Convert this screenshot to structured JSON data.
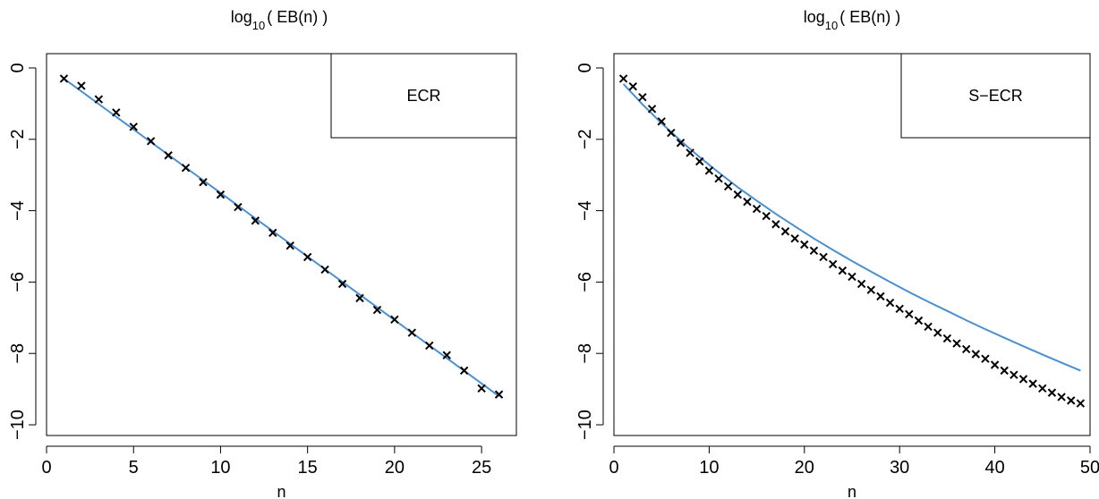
{
  "chart_data": [
    {
      "type": "scatter",
      "title": "log10( EB(n) )",
      "title_parts": {
        "base": "log",
        "sub": "10",
        "rest": "( EB(n) )"
      },
      "xlabel": "n",
      "ylabel": "",
      "xlim": [
        0,
        27
      ],
      "ylim": [
        -10.3,
        0.4
      ],
      "xticks": [
        0,
        5,
        10,
        15,
        20,
        25
      ],
      "yticks": [
        0,
        -2,
        -4,
        -6,
        -8,
        -10
      ],
      "grid": false,
      "legend": {
        "text": "ECR",
        "placement": "top-right"
      },
      "fit_color": "#4a90d0",
      "series": [
        {
          "marker": "x",
          "x": [
            1,
            2,
            3,
            4,
            5,
            6,
            7,
            8,
            9,
            10,
            11,
            12,
            13,
            14,
            15,
            16,
            17,
            18,
            19,
            20,
            21,
            22,
            23,
            24,
            25,
            26
          ],
          "y": [
            -0.3,
            -0.5,
            -0.88,
            -1.25,
            -1.65,
            -2.05,
            -2.45,
            -2.8,
            -3.2,
            -3.55,
            -3.9,
            -4.28,
            -4.62,
            -4.98,
            -5.3,
            -5.65,
            -6.05,
            -6.45,
            -6.78,
            -7.05,
            -7.42,
            -7.78,
            -8.05,
            -8.48,
            -8.98,
            -9.15
          ]
        }
      ],
      "fit": {
        "x": [
          1,
          26
        ],
        "y": [
          -0.3,
          -9.2
        ]
      }
    },
    {
      "type": "scatter",
      "title": "log10( EB(n) )",
      "title_parts": {
        "base": "log",
        "sub": "10",
        "rest": "( EB(n) )"
      },
      "xlabel": "n",
      "ylabel": "",
      "xlim": [
        0,
        50
      ],
      "ylim": [
        -10.3,
        0.4
      ],
      "xticks": [
        0,
        10,
        20,
        30,
        40,
        50
      ],
      "yticks": [
        0,
        -2,
        -4,
        -6,
        -8,
        -10
      ],
      "grid": false,
      "legend": {
        "text": "S−ECR",
        "placement": "top-right"
      },
      "fit_color": "#4a90d0",
      "series": [
        {
          "marker": "x",
          "x": [
            1,
            2,
            3,
            4,
            5,
            6,
            7,
            8,
            9,
            10,
            11,
            12,
            13,
            14,
            15,
            16,
            17,
            18,
            19,
            20,
            21,
            22,
            23,
            24,
            25,
            26,
            27,
            28,
            29,
            30,
            31,
            32,
            33,
            34,
            35,
            36,
            37,
            38,
            39,
            40,
            41,
            42,
            43,
            44,
            45,
            46,
            47,
            48,
            49
          ],
          "y": [
            -0.3,
            -0.52,
            -0.82,
            -1.15,
            -1.5,
            -1.82,
            -2.1,
            -2.38,
            -2.62,
            -2.88,
            -3.1,
            -3.32,
            -3.55,
            -3.75,
            -3.95,
            -4.15,
            -4.38,
            -4.58,
            -4.78,
            -4.95,
            -5.12,
            -5.3,
            -5.5,
            -5.68,
            -5.85,
            -6.05,
            -6.22,
            -6.4,
            -6.58,
            -6.75,
            -6.9,
            -7.08,
            -7.25,
            -7.42,
            -7.58,
            -7.72,
            -7.88,
            -8.02,
            -8.15,
            -8.32,
            -8.48,
            -8.6,
            -8.72,
            -8.85,
            -8.98,
            -9.1,
            -9.22,
            -9.32,
            -9.4
          ]
        }
      ],
      "fit": {
        "x": [
          1,
          3,
          5,
          7,
          9,
          11,
          13,
          15,
          17,
          19,
          21,
          23,
          25,
          27,
          29,
          31,
          33,
          35,
          37,
          39,
          41,
          43,
          45,
          47,
          49
        ],
        "y": [
          -0.45,
          -1.02,
          -1.55,
          -2.04,
          -2.5,
          -2.93,
          -3.34,
          -3.72,
          -4.09,
          -4.44,
          -4.78,
          -5.1,
          -5.41,
          -5.71,
          -6.0,
          -6.28,
          -6.55,
          -6.81,
          -7.07,
          -7.32,
          -7.56,
          -7.8,
          -8.03,
          -8.26,
          -8.48
        ]
      }
    }
  ]
}
